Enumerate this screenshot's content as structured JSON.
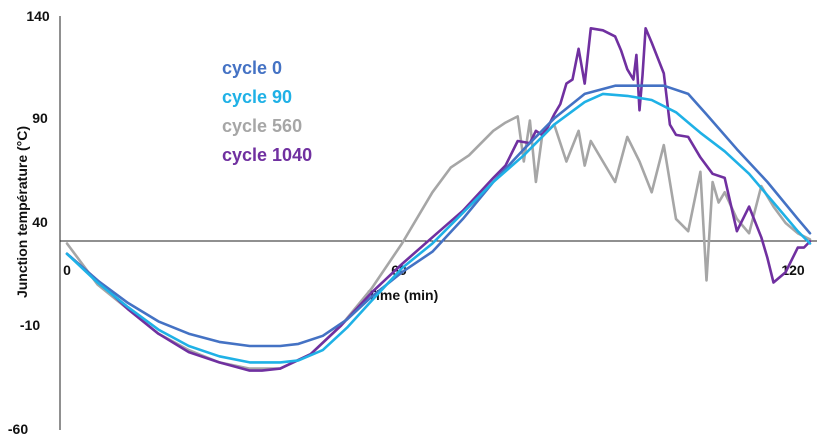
{
  "chart_data": {
    "type": "line",
    "title": "",
    "xlabel": "Time (min)",
    "ylabel": "Junction température (°C)",
    "xlim": [
      0,
      122
    ],
    "ylim": [
      -60,
      140
    ],
    "x_ticks": [
      "0",
      "60",
      "120"
    ],
    "y_ticks": [
      "-60",
      "-10",
      "40",
      "90",
      "140"
    ],
    "grid": false,
    "legend_position": "left-center",
    "series": [
      {
        "name": "cycle 0",
        "color": "#4472C4",
        "x": [
          0,
          5,
          10,
          15,
          20,
          25,
          30,
          35,
          38,
          42,
          46,
          50,
          55,
          60,
          65,
          70,
          75,
          80,
          85,
          90,
          93,
          98,
          102,
          105,
          110,
          115,
          120,
          122
        ],
        "y": [
          25,
          12,
          1,
          -8,
          -14,
          -18,
          -20,
          -20,
          -19,
          -15,
          -7,
          4,
          16,
          26,
          42,
          60,
          76,
          91,
          103,
          107,
          107,
          107,
          103,
          93,
          76,
          60,
          42,
          35
        ]
      },
      {
        "name": "cycle 90",
        "color": "#1FB1E6",
        "x": [
          0,
          5,
          10,
          15,
          20,
          25,
          30,
          35,
          38,
          42,
          46,
          50,
          55,
          60,
          65,
          70,
          75,
          80,
          85,
          88,
          92,
          96,
          100,
          104,
          108,
          112,
          116,
          120,
          122
        ],
        "y": [
          25,
          11,
          -1,
          -12,
          -20,
          -25,
          -28,
          -28,
          -27,
          -22,
          -11,
          2,
          18,
          30,
          45,
          60,
          73,
          88,
          99,
          103,
          102,
          100,
          94,
          84,
          75,
          64,
          50,
          36,
          30
        ]
      },
      {
        "name": "cycle 560",
        "color": "#A6A6A6",
        "x": [
          0,
          2,
          5,
          10,
          15,
          20,
          25,
          30,
          35,
          40,
          45,
          50,
          55,
          60,
          63,
          66,
          70,
          72,
          74,
          75,
          76,
          77,
          78,
          80,
          82,
          84,
          85,
          86,
          88,
          90,
          92,
          94,
          96,
          98,
          100,
          102,
          104,
          105,
          106,
          107,
          108,
          110,
          112,
          114,
          116,
          118,
          120,
          122
        ],
        "y": [
          30,
          22,
          10,
          -2,
          -14,
          -22,
          -28,
          -31,
          -31,
          -24,
          -10,
          8,
          30,
          55,
          67,
          73,
          85,
          89,
          92,
          70,
          90,
          60,
          82,
          88,
          70,
          85,
          68,
          80,
          70,
          60,
          82,
          70,
          55,
          78,
          42,
          36,
          65,
          12,
          60,
          50,
          55,
          42,
          35,
          58,
          48,
          40,
          35,
          32
        ]
      },
      {
        "name": "cycle 1040",
        "color": "#7030A0",
        "x": [
          0,
          5,
          10,
          15,
          20,
          25,
          30,
          32,
          35,
          40,
          45,
          50,
          55,
          60,
          65,
          70,
          72,
          74,
          76,
          77,
          78,
          79,
          80,
          81,
          82,
          83,
          84,
          85,
          86,
          88,
          90,
          91,
          92,
          93,
          93.5,
          94,
          94.5,
          95,
          96,
          98,
          99,
          100,
          102,
          104,
          106,
          108,
          110,
          112,
          114,
          115,
          116,
          118,
          120,
          121,
          122
        ],
        "y": [
          25,
          12,
          -2,
          -14,
          -23,
          -28,
          -32,
          -32,
          -31,
          -24,
          -10,
          6,
          20,
          33,
          46,
          62,
          68,
          80,
          79,
          85,
          83,
          87,
          93,
          98,
          108,
          110,
          125,
          108,
          135,
          134,
          131,
          124,
          115,
          110,
          122,
          95,
          112,
          135,
          128,
          113,
          88,
          83,
          82,
          72,
          64,
          62,
          36,
          48,
          33,
          23,
          11,
          16,
          28,
          28,
          31
        ]
      }
    ]
  }
}
